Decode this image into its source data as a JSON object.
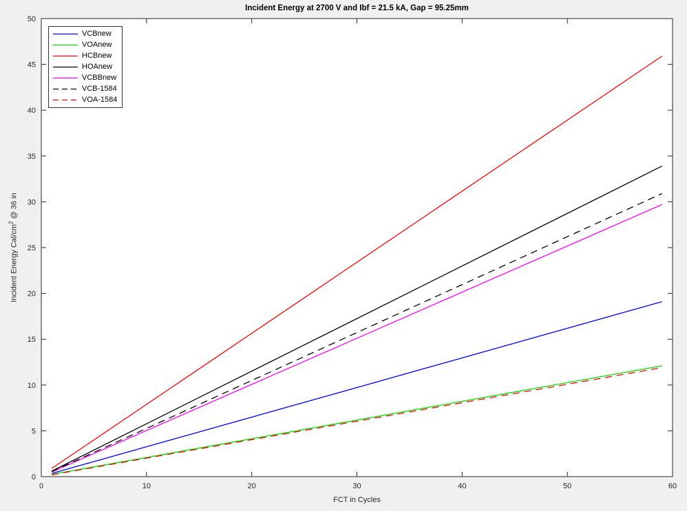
{
  "window": {
    "background_color": "#f0f0f0"
  },
  "chart_data": {
    "type": "line",
    "title": "Incident Energy at 2700 V and Ibf = 21.5 kA, Gap = 95.25mm",
    "xlabel": "FCT in Cycles",
    "ylabel": "Incident Energy Cal/cm^2 @ 36 in",
    "ylabel_parts": {
      "pre": "Incident Energy Cal/cm",
      "sup": "2",
      "post": " @ 36 in"
    },
    "xlim": [
      0,
      60
    ],
    "ylim": [
      0,
      50
    ],
    "xticks": [
      0,
      10,
      20,
      30,
      40,
      50,
      60
    ],
    "yticks": [
      0,
      5,
      10,
      15,
      20,
      25,
      30,
      35,
      40,
      45,
      50
    ],
    "grid": false,
    "legend_position": "top-left",
    "plot_background": "#ffffff",
    "axis_color": "#262626",
    "x": [
      1,
      59
    ],
    "series": [
      {
        "name": "VCBnew",
        "color": "#0000ff",
        "style": "solid",
        "values": [
          0.35,
          19.1
        ]
      },
      {
        "name": "VOAnew",
        "color": "#00dd00",
        "style": "solid",
        "values": [
          0.25,
          12.1
        ]
      },
      {
        "name": "HCBnew",
        "color": "#ff0000",
        "style": "solid",
        "values": [
          0.9,
          45.9
        ]
      },
      {
        "name": "HOAnew",
        "color": "#000000",
        "style": "solid",
        "values": [
          0.6,
          33.9
        ]
      },
      {
        "name": "VCBBnew",
        "color": "#ff00ff",
        "style": "solid",
        "values": [
          0.5,
          29.7
        ]
      },
      {
        "name": "VCB-1584",
        "color": "#000000",
        "style": "dashed",
        "values": [
          0.55,
          30.9
        ]
      },
      {
        "name": "VOA-1584",
        "color": "#ff0000",
        "style": "dashed",
        "values": [
          0.2,
          11.9
        ]
      }
    ]
  }
}
